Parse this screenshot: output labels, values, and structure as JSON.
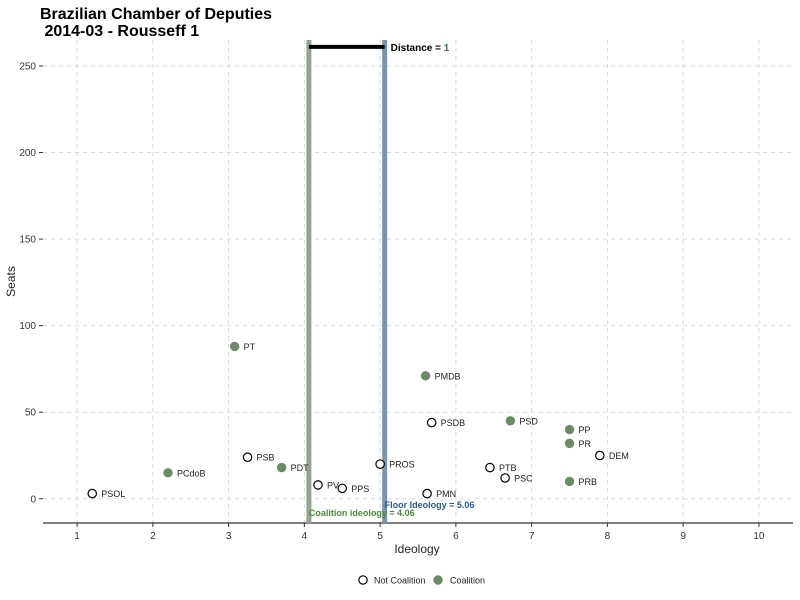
{
  "title_line1": "Brazilian Chamber of Deputies",
  "title_line2": " 2014-03 - Rousseff 1",
  "chart_data": {
    "type": "scatter",
    "xlabel": "Ideology",
    "ylabel": "Seats",
    "xlim": [
      0.55,
      10.45
    ],
    "ylim": [
      -14,
      265
    ],
    "xticks": [
      1,
      2,
      3,
      4,
      5,
      6,
      7,
      8,
      9,
      10
    ],
    "yticks": [
      0,
      50,
      100,
      150,
      200,
      250
    ],
    "grid": true,
    "legend_position": "bottom",
    "legend": [
      {
        "label": "Not Coalition",
        "coalition": false
      },
      {
        "label": "Coalition",
        "coalition": true
      }
    ],
    "colors": {
      "coalition_point": "#6b8b66",
      "coalition_line": "#8fa68a",
      "floor_line": "#7895ad",
      "coalition_text": "#4c8a3a",
      "floor_text": "#2b5d86",
      "distance_value": "#2e7d32"
    },
    "points": [
      {
        "party": "PT",
        "x": 3.08,
        "y": 88,
        "coalition": true
      },
      {
        "party": "PMDB",
        "x": 5.6,
        "y": 71,
        "coalition": true
      },
      {
        "party": "PSDB",
        "x": 5.68,
        "y": 44,
        "coalition": false
      },
      {
        "party": "PSD",
        "x": 6.72,
        "y": 45,
        "coalition": true
      },
      {
        "party": "PP",
        "x": 7.5,
        "y": 40,
        "coalition": true
      },
      {
        "party": "PR",
        "x": 7.5,
        "y": 32,
        "coalition": true
      },
      {
        "party": "DEM",
        "x": 7.9,
        "y": 25,
        "coalition": false
      },
      {
        "party": "PSB",
        "x": 3.25,
        "y": 24,
        "coalition": false
      },
      {
        "party": "PDT",
        "x": 3.7,
        "y": 18,
        "coalition": true
      },
      {
        "party": "PROS",
        "x": 5.0,
        "y": 20,
        "coalition": false
      },
      {
        "party": "PTB",
        "x": 6.45,
        "y": 18,
        "coalition": false
      },
      {
        "party": "PSC",
        "x": 6.65,
        "y": 12,
        "coalition": false
      },
      {
        "party": "PRB",
        "x": 7.5,
        "y": 10,
        "coalition": true
      },
      {
        "party": "PCdoB",
        "x": 2.2,
        "y": 15,
        "coalition": true
      },
      {
        "party": "PV",
        "x": 4.18,
        "y": 8,
        "coalition": false
      },
      {
        "party": "PPS",
        "x": 4.5,
        "y": 6,
        "coalition": false
      },
      {
        "party": "PMN",
        "x": 5.62,
        "y": 3,
        "coalition": false
      },
      {
        "party": "PSOL",
        "x": 1.2,
        "y": 3,
        "coalition": false
      }
    ],
    "coalition_ideology": 4.06,
    "floor_ideology": 5.06,
    "coalition_ideology_label": "Coalition ideology = 4.06",
    "floor_ideology_label": "Floor Ideology = 5.06",
    "distance_label": "Distance = ",
    "distance_value": "1",
    "distance_y": 261
  }
}
